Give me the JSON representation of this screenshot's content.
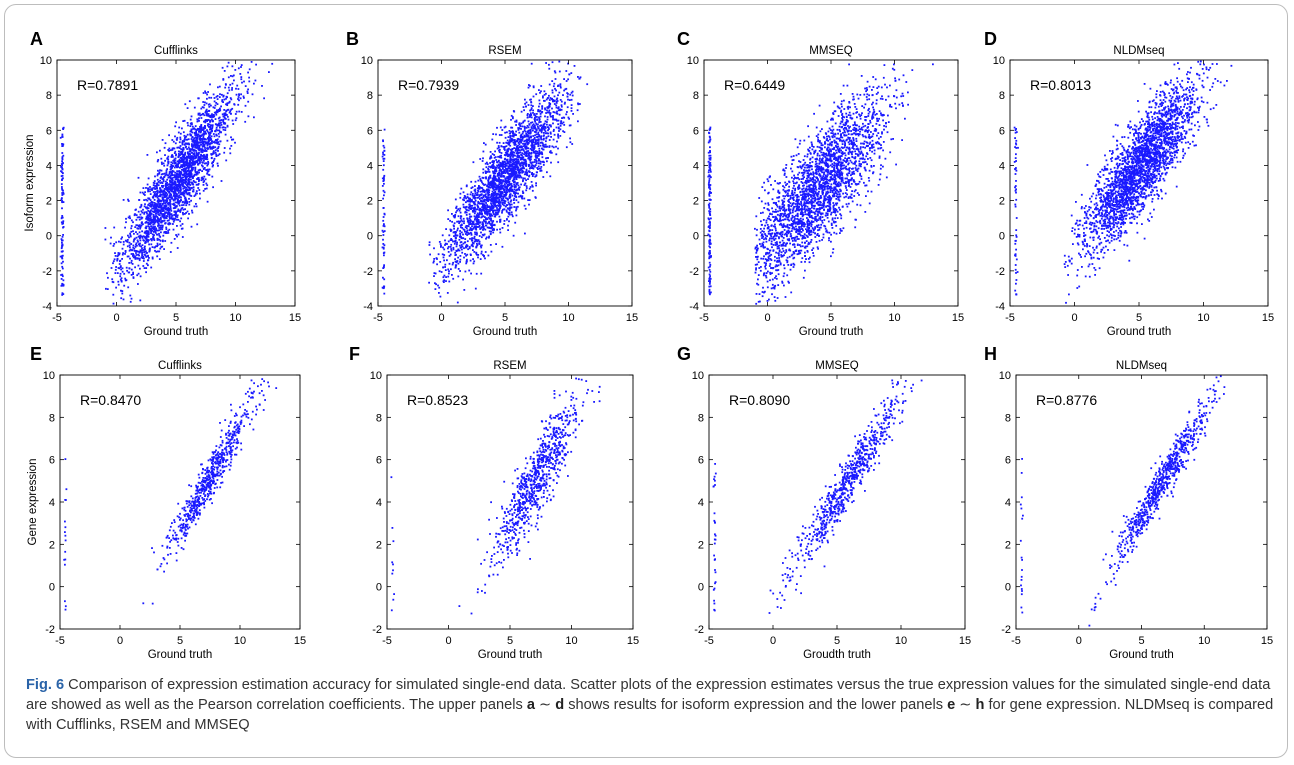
{
  "figure": {
    "caption_label": "Fig. 6",
    "caption_text_1": " Comparison of expression estimation accuracy for simulated single-end data. Scatter plots of the expression estimates versus the true expression values for the simulated single-end data are showed as well as the Pearson correlation coefficients. The upper panels ",
    "caption_bold_a": "a",
    "caption_sim1": " ∼ ",
    "caption_bold_d": "d",
    "caption_text_2": " shows results for isoform expression and the lower panels ",
    "caption_bold_e": "e",
    "caption_sim2": " ∼ ",
    "caption_bold_h": "h",
    "caption_text_3": " for gene expression. NLDMseq is compared with Cufflinks, RSEM and MMSEQ"
  },
  "colors": {
    "points": "#1a1aff",
    "caption_label": "#2a63a8"
  },
  "chart_data": [
    {
      "panel": "A",
      "type": "scatter",
      "title": "Cufflinks",
      "xlabel": "Ground truth",
      "ylabel": "Isoform expression",
      "xlim": [
        -5,
        15
      ],
      "ylim": [
        -4,
        10
      ],
      "xticks": [
        "-5",
        "0",
        "5",
        "10",
        "15"
      ],
      "yticks": [
        "-4",
        "-2",
        "0",
        "2",
        "4",
        "6",
        "8",
        "10"
      ],
      "annotation": "R=0.7891",
      "pearson_r": 0.7891,
      "n_points": 2600,
      "x_mean": 5.2,
      "x_sd": 2.4,
      "slope": 0.95,
      "intercept": -1.8,
      "noise_sd": 1.2,
      "left_stripe_frac": 0.04
    },
    {
      "panel": "B",
      "type": "scatter",
      "title": "RSEM",
      "xlabel": "Ground truth",
      "ylabel": "",
      "xlim": [
        -5,
        15
      ],
      "ylim": [
        -4,
        10
      ],
      "xticks": [
        "-5",
        "0",
        "5",
        "10",
        "15"
      ],
      "yticks": [
        "-4",
        "-2",
        "0",
        "2",
        "4",
        "6",
        "8",
        "10"
      ],
      "annotation": "R=0.7939",
      "pearson_r": 0.7939,
      "n_points": 2600,
      "x_mean": 5.0,
      "x_sd": 2.3,
      "slope": 0.93,
      "intercept": -1.4,
      "noise_sd": 1.25,
      "left_stripe_frac": 0.025
    },
    {
      "panel": "C",
      "type": "scatter",
      "title": "MMSEQ",
      "xlabel": "Ground truth",
      "ylabel": "",
      "xlim": [
        -5,
        15
      ],
      "ylim": [
        -4,
        10
      ],
      "xticks": [
        "-5",
        "0",
        "5",
        "10",
        "15"
      ],
      "yticks": [
        "-4",
        "-2",
        "0",
        "2",
        "4",
        "6",
        "8",
        "10"
      ],
      "annotation": "R=0.6449",
      "pearson_r": 0.6449,
      "n_points": 2600,
      "x_mean": 4.2,
      "x_sd": 2.6,
      "slope": 0.8,
      "intercept": -0.6,
      "noise_sd": 1.6,
      "left_stripe_frac": 0.06
    },
    {
      "panel": "D",
      "type": "scatter",
      "title": "NLDMseq",
      "xlabel": "Ground truth",
      "ylabel": "",
      "xlim": [
        -5,
        15
      ],
      "ylim": [
        -4,
        10
      ],
      "xticks": [
        "-5",
        "0",
        "5",
        "10",
        "15"
      ],
      "yticks": [
        "-4",
        "-2",
        "0",
        "2",
        "4",
        "6",
        "8",
        "10"
      ],
      "annotation": "R=0.8013",
      "pearson_r": 0.8013,
      "n_points": 2600,
      "x_mean": 5.2,
      "x_sd": 2.2,
      "slope": 0.9,
      "intercept": -0.7,
      "noise_sd": 1.3,
      "left_stripe_frac": 0.02
    },
    {
      "panel": "E",
      "type": "scatter",
      "title": "Cufflinks",
      "xlabel": "Ground truth",
      "ylabel": "Gene expression",
      "xlim": [
        -5,
        15
      ],
      "ylim": [
        -2,
        10
      ],
      "xticks": [
        "-5",
        "0",
        "5",
        "10",
        "15"
      ],
      "yticks": [
        "-2",
        "0",
        "2",
        "4",
        "6",
        "8",
        "10"
      ],
      "annotation": "R=0.8470",
      "pearson_r": 0.847,
      "n_points": 650,
      "x_mean": 7.4,
      "x_sd": 1.9,
      "slope": 0.98,
      "intercept": -2.2,
      "noise_sd": 0.55,
      "left_stripe_frac": 0.025
    },
    {
      "panel": "F",
      "type": "scatter",
      "title": "RSEM",
      "xlabel": "Ground truth",
      "ylabel": "",
      "xlim": [
        -5,
        15
      ],
      "ylim": [
        -2,
        10
      ],
      "xticks": [
        "-5",
        "0",
        "5",
        "10",
        "15"
      ],
      "yticks": [
        "-2",
        "0",
        "2",
        "4",
        "6",
        "8",
        "10"
      ],
      "annotation": "R=0.8523",
      "pearson_r": 0.8523,
      "n_points": 800,
      "x_mean": 7.3,
      "x_sd": 1.8,
      "slope": 0.95,
      "intercept": -1.8,
      "noise_sd": 0.9,
      "left_stripe_frac": 0.012
    },
    {
      "panel": "G",
      "type": "scatter",
      "title": "MMSEQ",
      "xlabel": "Groudth truth",
      "ylabel": "",
      "xlim": [
        -5,
        15
      ],
      "ylim": [
        -2,
        10
      ],
      "xticks": [
        "-5",
        "0",
        "5",
        "10",
        "15"
      ],
      "yticks": [
        "-2",
        "0",
        "2",
        "4",
        "6",
        "8",
        "10"
      ],
      "annotation": "R=0.8090",
      "pearson_r": 0.809,
      "n_points": 750,
      "x_mean": 5.9,
      "x_sd": 2.2,
      "slope": 0.98,
      "intercept": -0.8,
      "noise_sd": 0.6,
      "left_stripe_frac": 0.04
    },
    {
      "panel": "H",
      "type": "scatter",
      "title": "NLDMseq",
      "xlabel": "Ground truth",
      "ylabel": "",
      "xlim": [
        -5,
        15
      ],
      "ylim": [
        -2,
        10
      ],
      "xticks": [
        "-5",
        "0",
        "5",
        "10",
        "15"
      ],
      "yticks": [
        "-2",
        "0",
        "2",
        "4",
        "6",
        "8",
        "10"
      ],
      "annotation": "R=0.8776",
      "pearson_r": 0.8776,
      "n_points": 750,
      "x_mean": 6.8,
      "x_sd": 2.0,
      "slope": 0.97,
      "intercept": -1.5,
      "noise_sd": 0.5,
      "left_stripe_frac": 0.025
    }
  ]
}
